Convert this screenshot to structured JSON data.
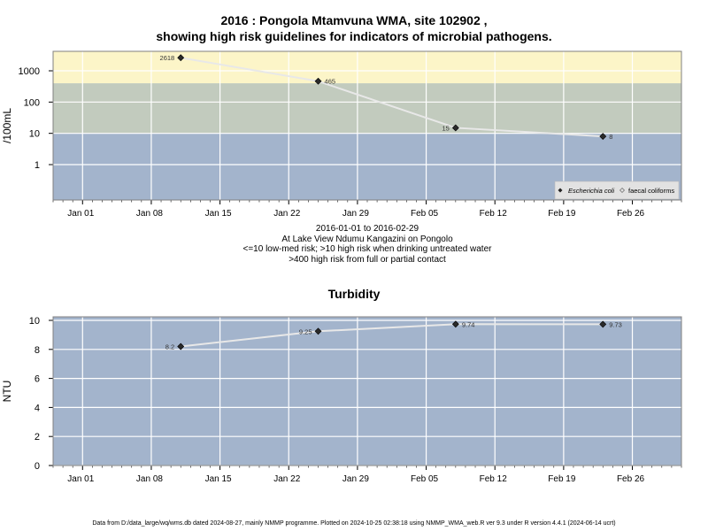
{
  "chart_data": [
    {
      "type": "line",
      "title_line1": "2016 : Pongola Mtamvuna WMA, site 102902 ,",
      "title_line2": "showing high risk guidelines for indicators of microbial pathogens.",
      "ylabel": "/100mL",
      "y_scale": "log",
      "y_ticks": [
        "1",
        "10",
        "100",
        "1000"
      ],
      "x_ticks": [
        "Jan 01",
        "Jan 08",
        "Jan 15",
        "Jan 22",
        "Jan 29",
        "Feb 05",
        "Feb 12",
        "Feb 19",
        "Feb 26"
      ],
      "x_range": [
        "2015-12-29",
        "2016-03-02"
      ],
      "risk_bands": [
        {
          "label": "<=10 low-med risk",
          "from": 0,
          "to": 10,
          "color": "#a3b4cc"
        },
        {
          "label": ">10 high risk when drinking untreated water",
          "from": 10,
          "to": 400,
          "color": "#c2cbbe"
        },
        {
          "label": ">400 high risk from full or partial contact",
          "from": 400,
          "to": 5000,
          "color": "#fcf5c8"
        }
      ],
      "grid": true,
      "legend_position": "bottom-right",
      "series": [
        {
          "name": "Escherichia coli",
          "x": [
            "2016-01-11",
            "2016-01-25",
            "2016-02-08",
            "2016-02-23"
          ],
          "y": [
            2618,
            465,
            15,
            8
          ],
          "labels": [
            "2618",
            "465",
            "15",
            "8"
          ]
        },
        {
          "name": "faecal coliforms",
          "x": [],
          "y": [],
          "labels": []
        }
      ],
      "caption": [
        "2016-01-01 to 2016-02-29",
        "At Lake View Ndumu Kangazini on Pongolo",
        "<=10 low-med risk; >10 high risk when drinking untreated water",
        ">400 high risk from full or partial contact"
      ]
    },
    {
      "type": "line",
      "title": "Turbidity",
      "ylabel": "NTU",
      "ylim": [
        0,
        10
      ],
      "y_ticks": [
        "0",
        "2",
        "4",
        "6",
        "8",
        "10"
      ],
      "x_ticks": [
        "Jan 01",
        "Jan 08",
        "Jan 15",
        "Jan 22",
        "Jan 29",
        "Feb 05",
        "Feb 12",
        "Feb 19",
        "Feb 26"
      ],
      "x_range": [
        "2015-12-29",
        "2016-03-02"
      ],
      "background_color": "#a3b4cc",
      "grid": true,
      "series": [
        {
          "x": [
            "2016-01-11",
            "2016-01-25",
            "2016-02-08",
            "2016-02-23"
          ],
          "y": [
            8.2,
            9.25,
            9.74,
            9.73
          ],
          "labels": [
            "8.2",
            "9.25",
            "9.74",
            "9.73"
          ]
        }
      ]
    }
  ],
  "footer": "Data from D:/data_large/wq/wms.db dated 2024-08-27, mainly NMMP programme. Plotted on 2024-10-25 02:38:18 using NMMP_WMA_web.R ver 9.3 under R version 4.4.1 (2024-06-14 ucrt)"
}
